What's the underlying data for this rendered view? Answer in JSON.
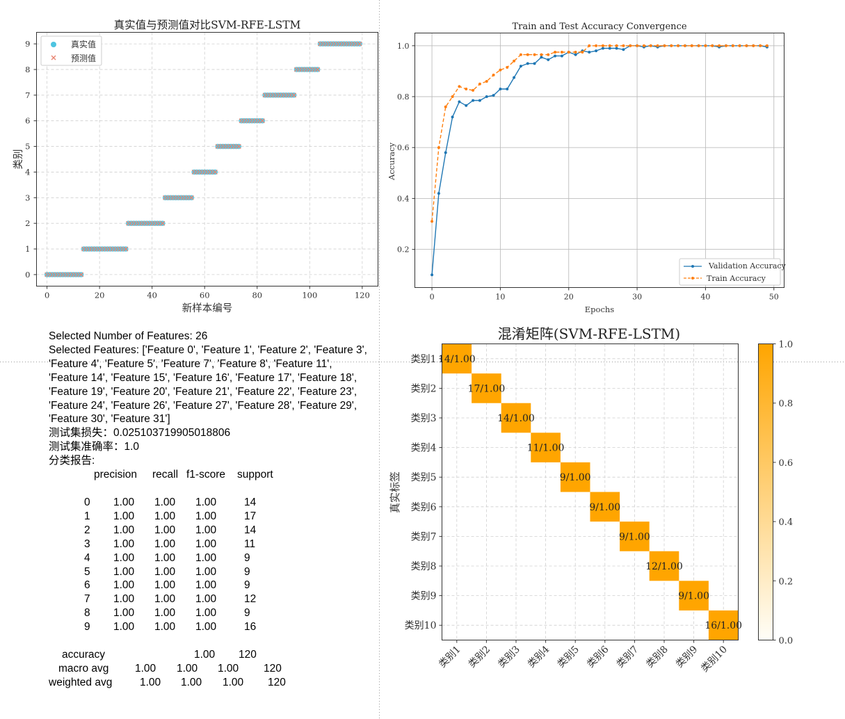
{
  "chart_data": [
    {
      "type": "scatter",
      "title": "真实值与预测值对比SVM-RFE-LSTM",
      "xlabel": "新样本编号",
      "ylabel": "类别",
      "xlim": [
        -4,
        126
      ],
      "ylim": [
        -0.45,
        9.45
      ],
      "xticks": [
        "0",
        "20",
        "40",
        "60",
        "80",
        "100",
        "120"
      ],
      "yticks": [
        "0",
        "1",
        "2",
        "3",
        "4",
        "5",
        "6",
        "7",
        "8",
        "9"
      ],
      "grid": true,
      "legend": "top-left",
      "series": [
        {
          "name": "真实值",
          "marker": "circle",
          "color": "#4dc4e0"
        },
        {
          "name": "预测值",
          "marker": "x",
          "color": "#e8826f"
        }
      ],
      "class_counts": [
        14,
        17,
        14,
        11,
        9,
        9,
        9,
        12,
        9,
        16
      ]
    },
    {
      "type": "line",
      "title": "Train and Test Accuracy Convergence",
      "xlabel": "Epochs",
      "ylabel": "Accuracy",
      "xlim": [
        -2.5,
        51.5
      ],
      "ylim": [
        0.05,
        1.05
      ],
      "xticks": [
        "0",
        "10",
        "20",
        "30",
        "40",
        "50"
      ],
      "yticks": [
        "0.2",
        "0.4",
        "0.6",
        "0.8",
        "1.0"
      ],
      "grid": true,
      "legend": "bottom-right",
      "x": [
        0,
        1,
        2,
        3,
        4,
        5,
        6,
        7,
        8,
        9,
        10,
        11,
        12,
        13,
        14,
        15,
        16,
        17,
        18,
        19,
        20,
        21,
        22,
        23,
        24,
        25,
        26,
        27,
        28,
        29,
        30,
        31,
        32,
        33,
        34,
        35,
        36,
        37,
        38,
        39,
        40,
        41,
        42,
        43,
        44,
        45,
        46,
        47,
        48,
        49
      ],
      "series": [
        {
          "name": "Validation Accuracy",
          "color": "#1f77b4",
          "style": "solid",
          "values": [
            0.1,
            0.42,
            0.58,
            0.72,
            0.78,
            0.765,
            0.785,
            0.785,
            0.8,
            0.805,
            0.83,
            0.83,
            0.875,
            0.92,
            0.93,
            0.93,
            0.955,
            0.945,
            0.96,
            0.96,
            0.975,
            0.965,
            0.98,
            0.975,
            0.98,
            0.99,
            0.99,
            0.99,
            0.985,
            1.0,
            1.0,
            0.995,
            1.0,
            0.995,
            1.0,
            1.0,
            1.0,
            1.0,
            1.0,
            1.0,
            1.0,
            1.0,
            0.995,
            1.0,
            1.0,
            1.0,
            1.0,
            1.0,
            1.0,
            0.995
          ]
        },
        {
          "name": "Train Accuracy",
          "color": "#ff7f0e",
          "style": "dashed",
          "values": [
            0.31,
            0.6,
            0.76,
            0.8,
            0.84,
            0.83,
            0.825,
            0.85,
            0.86,
            0.885,
            0.905,
            0.915,
            0.94,
            0.965,
            0.965,
            0.965,
            0.965,
            0.965,
            0.975,
            0.975,
            0.975,
            0.975,
            0.975,
            1.0,
            1.0,
            1.0,
            1.0,
            1.0,
            1.0,
            1.0,
            1.0,
            1.0,
            1.0,
            1.0,
            1.0,
            1.0,
            1.0,
            1.0,
            1.0,
            1.0,
            1.0,
            1.0,
            1.0,
            1.0,
            1.0,
            1.0,
            1.0,
            1.0,
            1.0,
            1.0
          ]
        }
      ]
    },
    {
      "type": "heatmap",
      "title": "混淆矩阵(SVM-RFE-LSTM)",
      "ylabel": "真实标签",
      "categories": [
        "类别1",
        "类别2",
        "类别3",
        "类别4",
        "类别5",
        "类别6",
        "类别7",
        "类别8",
        "类别9",
        "类别10"
      ],
      "diagonal_labels": [
        "14/1.00",
        "17/1.00",
        "14/1.00",
        "11/1.00",
        "9/1.00",
        "9/1.00",
        "9/1.00",
        "12/1.00",
        "9/1.00",
        "16/1.00"
      ],
      "diagonal_values": [
        1.0,
        1.0,
        1.0,
        1.0,
        1.0,
        1.0,
        1.0,
        1.0,
        1.0,
        1.0
      ],
      "colorbar_ticks": [
        "0.0",
        "0.2",
        "0.4",
        "0.6",
        "0.8",
        "1.0"
      ],
      "colorbar_range": [
        0,
        1
      ],
      "color_high": "#ffa500",
      "color_low": "#fffef8",
      "grid": true
    }
  ],
  "report": {
    "features_count_line": "Selected Number of Features: 26",
    "features_lines": [
      "Selected Features: ['Feature 0', 'Feature 1', 'Feature 2', 'Feature 3',",
      "'Feature 4', 'Feature 5', 'Feature 7', 'Feature 8', 'Feature 11',",
      "'Feature 14', 'Feature 15', 'Feature 16', 'Feature 17', 'Feature 18',",
      "'Feature 19', 'Feature 20', 'Feature 21', 'Feature 22', 'Feature 23',",
      "'Feature 24', 'Feature 26', 'Feature 27', 'Feature 28', 'Feature 29',",
      "'Feature 30', 'Feature 31']"
    ],
    "loss_line": "测试集损失：0.025103719905018806",
    "acc_line": "测试集准确率：1.0",
    "report_title": "分类报告:",
    "headers": [
      "precision",
      "recall",
      "f1-score",
      "support"
    ],
    "rows": [
      {
        "label": "0",
        "precision": "1.00",
        "recall": "1.00",
        "f1": "1.00",
        "support": "14"
      },
      {
        "label": "1",
        "precision": "1.00",
        "recall": "1.00",
        "f1": "1.00",
        "support": "17"
      },
      {
        "label": "2",
        "precision": "1.00",
        "recall": "1.00",
        "f1": "1.00",
        "support": "14"
      },
      {
        "label": "3",
        "precision": "1.00",
        "recall": "1.00",
        "f1": "1.00",
        "support": "11"
      },
      {
        "label": "4",
        "precision": "1.00",
        "recall": "1.00",
        "f1": "1.00",
        "support": "9"
      },
      {
        "label": "5",
        "precision": "1.00",
        "recall": "1.00",
        "f1": "1.00",
        "support": "9"
      },
      {
        "label": "6",
        "precision": "1.00",
        "recall": "1.00",
        "f1": "1.00",
        "support": "9"
      },
      {
        "label": "7",
        "precision": "1.00",
        "recall": "1.00",
        "f1": "1.00",
        "support": "12"
      },
      {
        "label": "8",
        "precision": "1.00",
        "recall": "1.00",
        "f1": "1.00",
        "support": "9"
      },
      {
        "label": "9",
        "precision": "1.00",
        "recall": "1.00",
        "f1": "1.00",
        "support": "16"
      }
    ],
    "accuracy_row": {
      "label": "accuracy",
      "f1": "1.00",
      "support": "120"
    },
    "macro_row": {
      "label": "macro avg",
      "precision": "1.00",
      "recall": "1.00",
      "f1": "1.00",
      "support": "120"
    },
    "weighted_row": {
      "label": "weighted avg",
      "precision": "1.00",
      "recall": "1.00",
      "f1": "1.00",
      "support": "120"
    }
  }
}
